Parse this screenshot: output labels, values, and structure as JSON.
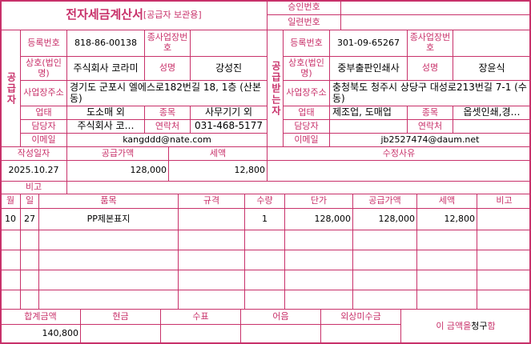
{
  "title": {
    "main": "전자세금계산서",
    "sub": "[공급자 보관용]"
  },
  "approval": {
    "approval_no_label": "승인번호",
    "approval_no": "",
    "serial_no_label": "일련번호",
    "serial_no": ""
  },
  "labels": {
    "reg_no": "등록번호",
    "sub_biz_no": "종사업장번호",
    "company": "상호(법인명)",
    "name": "성명",
    "address": "사업장주소",
    "biz_type": "업태",
    "biz_item": "종목",
    "contact_person": "담당자",
    "phone": "연락처",
    "email": "이메일"
  },
  "supplier": {
    "side_label": "공급자",
    "reg_no": "818-86-00138",
    "sub_biz_no": "",
    "company": "주식회사 코라미",
    "name": "강성진",
    "address": "경기도 군포시 엘에스로182번길 18, 1층 (산본동)",
    "biz_type": "도소매 외",
    "biz_item": "사무기기 외",
    "contact_person": "주식회사 코…",
    "phone": "031-468-5177",
    "email": "kangddd@nate.com"
  },
  "receiver": {
    "side_label": "공급받는자",
    "reg_no": "301-09-65267",
    "sub_biz_no": "",
    "company": "중부출판인쇄사",
    "name": "장윤식",
    "address": "충청북도 청주시 상당구 대성로213번길 7-1 (수동)",
    "biz_type": "제조업, 도매업",
    "biz_item": "옵셋인쇄,경…",
    "contact_person": "",
    "phone": "",
    "email": "jb2527474@daum.net"
  },
  "summary": {
    "date_label": "작성일자",
    "supply_label": "공급가액",
    "tax_label": "세액",
    "reason_label": "수정사유",
    "date": "2025.10.27",
    "supply": "128,000",
    "tax": "12,800",
    "reason": "",
    "note_label": "비고",
    "note": ""
  },
  "items": {
    "headers": [
      "월",
      "일",
      "품목",
      "규격",
      "수량",
      "단가",
      "공급가액",
      "세액",
      "비고"
    ],
    "rows": [
      [
        "10",
        "27",
        "PP제본표지",
        "",
        "1",
        "128,000",
        "128,000",
        "12,800",
        ""
      ]
    ]
  },
  "totals": {
    "total_label": "합계금액",
    "cash_label": "현금",
    "check_label": "수표",
    "note_label": "어음",
    "credit_label": "외상미수금",
    "total": "140,800",
    "cash": "",
    "check": "",
    "note": "",
    "credit": "",
    "claim_prefix": "이 금액을 ",
    "claim_word": "청구",
    "claim_suffix": "함"
  },
  "colors": {
    "accent": "#c8316a"
  }
}
